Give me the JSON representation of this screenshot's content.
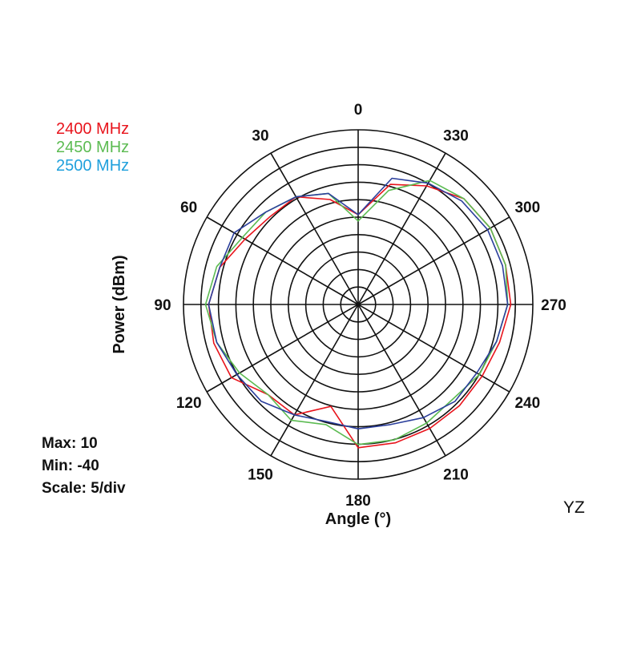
{
  "chart_data": {
    "type": "polar-line",
    "ylabel": "Power  (dBm)",
    "xlabel": "Angle  (°)",
    "plane": "YZ",
    "stats": {
      "max": "Max: 10",
      "min": "Min: -40",
      "scale": "Scale: 5/div"
    },
    "r_range": [
      -40,
      10
    ],
    "r_step": 5,
    "angle_ticks": [
      "0",
      "30",
      "60",
      "90",
      "120",
      "150",
      "180",
      "210",
      "240",
      "270",
      "300",
      "330"
    ],
    "series": [
      {
        "name": "2400 MHz",
        "color": "#e8141c",
        "angles": [
          0,
          15,
          30,
          45,
          60,
          75,
          90,
          105,
          120,
          135,
          150,
          165,
          180,
          195,
          210,
          225,
          240,
          255,
          270,
          285,
          300,
          315,
          330,
          345
        ],
        "values": [
          -17,
          -11,
          -6,
          -6,
          -4,
          0,
          2,
          2,
          1,
          -5,
          -5,
          -12,
          0,
          0,
          0,
          0,
          0,
          1,
          3,
          3,
          3,
          2,
          -2,
          -6
        ]
      },
      {
        "name": "2450 MHz",
        "color": "#5cbb52",
        "angles": [
          0,
          15,
          30,
          45,
          60,
          75,
          90,
          105,
          120,
          135,
          150,
          165,
          180,
          195,
          210,
          225,
          240,
          255,
          270,
          285,
          300,
          315,
          330,
          345
        ],
        "values": [
          -19,
          -9,
          -6,
          -4,
          -3,
          1,
          3,
          1,
          -2,
          -5,
          -3,
          -6,
          -1,
          -1,
          -2,
          -3,
          -1,
          0,
          2,
          3,
          3,
          2,
          0,
          -8
        ]
      },
      {
        "name": "2500 MHz",
        "color": "#1fa0dc",
        "line_color": "#2b3f9c",
        "angles": [
          0,
          15,
          30,
          45,
          60,
          75,
          90,
          105,
          120,
          135,
          150,
          165,
          180,
          195,
          210,
          225,
          240,
          255,
          270,
          285,
          300,
          315,
          330,
          345
        ],
        "values": [
          -17,
          -9,
          -6,
          -4,
          0,
          0,
          2,
          1,
          -1,
          -2,
          -5,
          -7,
          -6,
          -6,
          -4,
          -2,
          -2,
          0,
          2,
          2,
          2,
          1,
          -1,
          -4
        ]
      }
    ]
  }
}
